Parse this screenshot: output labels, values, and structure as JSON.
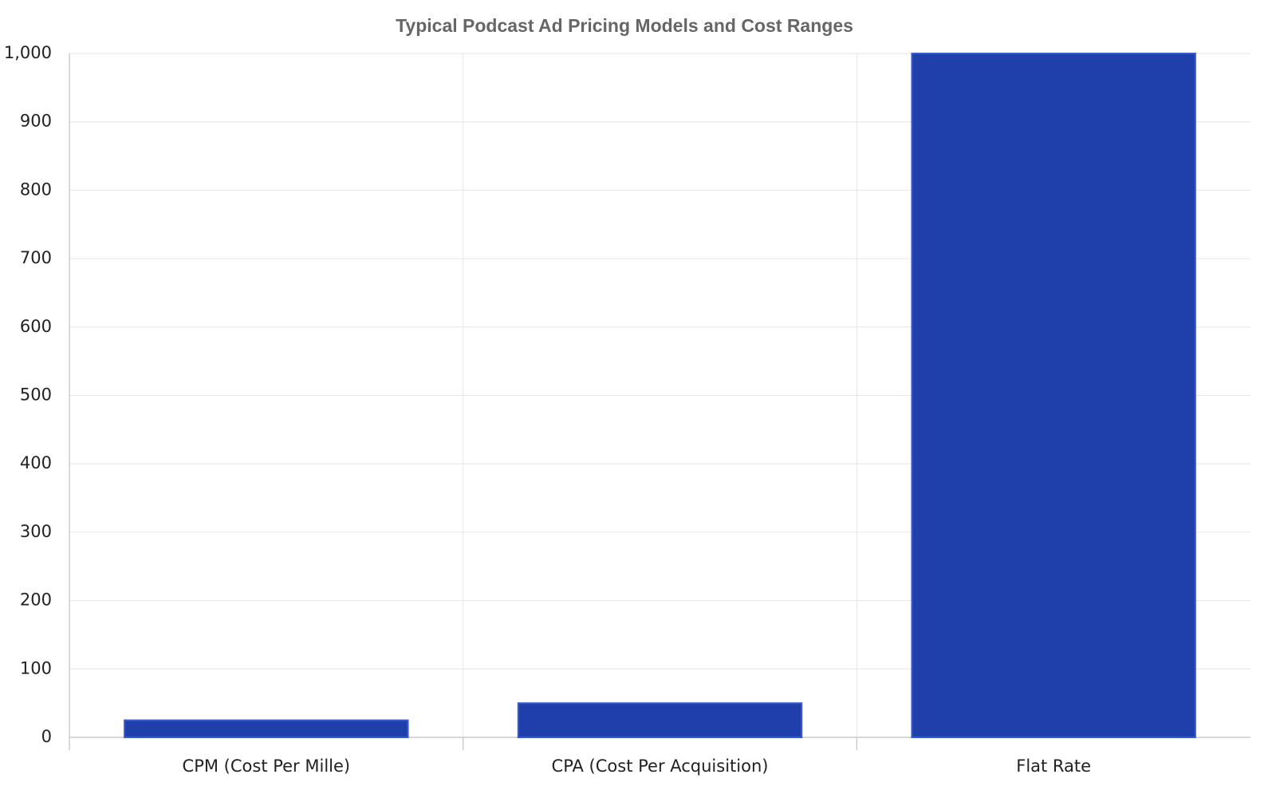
{
  "chart_data": {
    "type": "bar",
    "title": "Typical Podcast Ad Pricing Models and Cost Ranges",
    "categories": [
      "CPM (Cost Per Mille)",
      "CPA (Cost Per Acquisition)",
      "Flat Rate"
    ],
    "values": [
      25,
      50,
      1000
    ],
    "color": "#1f40aa",
    "ylim": [
      0,
      1000
    ],
    "yticks": [
      0,
      100,
      200,
      300,
      400,
      500,
      600,
      700,
      800,
      900,
      {
        "value": 1000,
        "label": "1,000"
      }
    ],
    "grid": true
  }
}
